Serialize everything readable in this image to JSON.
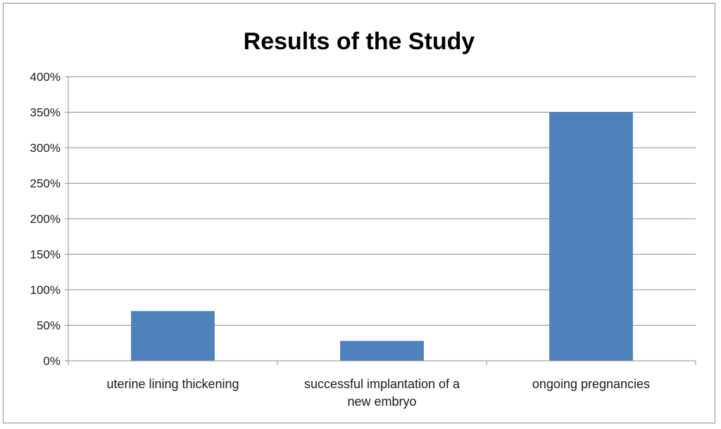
{
  "chart_data": {
    "type": "bar",
    "title": "Results of the Study",
    "xlabel": "",
    "ylabel": "",
    "categories": [
      [
        "uterine lining thickening"
      ],
      [
        "successful implantation of a",
        "new embryo"
      ],
      [
        "ongoing pregnancies"
      ]
    ],
    "values": [
      70,
      28,
      350
    ],
    "ylim": [
      0,
      400
    ],
    "ytick_step": 50,
    "ytick_suffix": "%",
    "grid": true,
    "legend": "none",
    "bar_color": "#4f81bd",
    "grid_color": "#8c8c8c",
    "axis_color": "#8c8c8c"
  }
}
